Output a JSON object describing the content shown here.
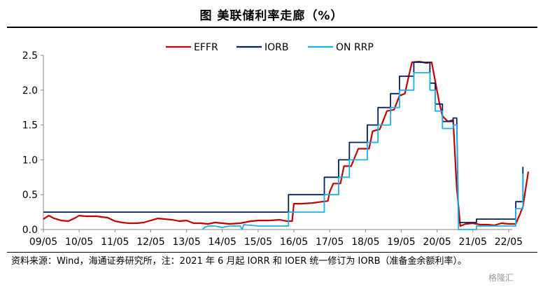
{
  "title": "图  美联储利率走廊（%）",
  "source": "资料来源：Wind，海通证券研究所，注：2021 年 6 月起 IORR 和 IOER 统一修订为 IORB（准备金余额利率）。",
  "watermark": "格隆汇",
  "chart_data": {
    "type": "line",
    "title": "",
    "xlabel": "",
    "ylabel": "",
    "ylim": [
      0,
      2.5
    ],
    "yticks": [
      "0.0",
      "0.5",
      "1.0",
      "1.5",
      "2.0",
      "2.5"
    ],
    "xticks": [
      "09/05",
      "10/05",
      "11/05",
      "12/05",
      "13/05",
      "14/05",
      "15/05",
      "16/05",
      "17/05",
      "18/05",
      "19/05",
      "20/05",
      "21/05",
      "22/05"
    ],
    "legend_position": "top-right",
    "series": [
      {
        "name": "EFFR",
        "color": "#c00000",
        "points": [
          [
            0,
            0.15
          ],
          [
            0.15,
            0.2
          ],
          [
            0.3,
            0.16
          ],
          [
            0.5,
            0.13
          ],
          [
            0.7,
            0.12
          ],
          [
            0.9,
            0.17
          ],
          [
            1.0,
            0.2
          ],
          [
            1.2,
            0.19
          ],
          [
            1.5,
            0.19
          ],
          [
            1.8,
            0.17
          ],
          [
            2.0,
            0.12
          ],
          [
            2.2,
            0.1
          ],
          [
            2.4,
            0.09
          ],
          [
            2.6,
            0.09
          ],
          [
            2.8,
            0.1
          ],
          [
            3.0,
            0.13
          ],
          [
            3.2,
            0.16
          ],
          [
            3.4,
            0.15
          ],
          [
            3.6,
            0.14
          ],
          [
            3.8,
            0.12
          ],
          [
            4.0,
            0.13
          ],
          [
            4.2,
            0.09
          ],
          [
            4.4,
            0.09
          ],
          [
            4.6,
            0.08
          ],
          [
            4.8,
            0.1
          ],
          [
            5.0,
            0.09
          ],
          [
            5.2,
            0.08
          ],
          [
            5.5,
            0.09
          ],
          [
            5.8,
            0.12
          ],
          [
            6.0,
            0.13
          ],
          [
            6.3,
            0.13
          ],
          [
            6.6,
            0.14
          ],
          [
            6.8,
            0.12
          ],
          [
            6.95,
            0.12
          ],
          [
            7.0,
            0.37
          ],
          [
            7.2,
            0.37
          ],
          [
            7.5,
            0.38
          ],
          [
            7.8,
            0.4
          ],
          [
            7.95,
            0.41
          ],
          [
            8.0,
            0.54
          ],
          [
            8.1,
            0.66
          ],
          [
            8.3,
            0.66
          ],
          [
            8.4,
            0.91
          ],
          [
            8.6,
            0.91
          ],
          [
            8.8,
            1.16
          ],
          [
            9.1,
            1.16
          ],
          [
            9.2,
            1.41
          ],
          [
            9.4,
            1.44
          ],
          [
            9.6,
            1.7
          ],
          [
            9.8,
            1.72
          ],
          [
            9.95,
            1.92
          ],
          [
            10.1,
            1.95
          ],
          [
            10.2,
            2.18
          ],
          [
            10.3,
            2.4
          ],
          [
            10.5,
            2.41
          ],
          [
            10.7,
            2.39
          ],
          [
            10.85,
            2.4
          ],
          [
            10.95,
            2.13
          ],
          [
            11.05,
            1.85
          ],
          [
            11.15,
            1.63
          ],
          [
            11.3,
            1.55
          ],
          [
            11.45,
            1.57
          ],
          [
            11.55,
            0.6
          ],
          [
            11.65,
            0.05
          ],
          [
            11.8,
            0.08
          ],
          [
            12.0,
            0.09
          ],
          [
            12.2,
            0.07
          ],
          [
            12.4,
            0.07
          ],
          [
            12.6,
            0.06
          ],
          [
            12.8,
            0.09
          ],
          [
            13.0,
            0.08
          ],
          [
            13.2,
            0.08
          ],
          [
            13.3,
            0.2
          ],
          [
            13.4,
            0.33
          ],
          [
            13.55,
            0.83
          ]
        ]
      },
      {
        "name": "IORB",
        "color": "#00205f",
        "points": [
          [
            0,
            0.25
          ],
          [
            6.85,
            0.25
          ],
          [
            6.85,
            0.5
          ],
          [
            7.85,
            0.5
          ],
          [
            7.85,
            0.75
          ],
          [
            8.25,
            0.75
          ],
          [
            8.25,
            1.0
          ],
          [
            8.55,
            1.0
          ],
          [
            8.55,
            1.25
          ],
          [
            9.05,
            1.25
          ],
          [
            9.05,
            1.5
          ],
          [
            9.35,
            1.5
          ],
          [
            9.35,
            1.75
          ],
          [
            9.7,
            1.75
          ],
          [
            9.7,
            1.95
          ],
          [
            9.95,
            1.95
          ],
          [
            9.95,
            2.2
          ],
          [
            10.35,
            2.2
          ],
          [
            10.35,
            2.4
          ],
          [
            10.8,
            2.4
          ],
          [
            10.8,
            2.1
          ],
          [
            10.95,
            2.1
          ],
          [
            10.95,
            1.8
          ],
          [
            11.15,
            1.8
          ],
          [
            11.15,
            1.55
          ],
          [
            11.45,
            1.55
          ],
          [
            11.45,
            1.6
          ],
          [
            11.55,
            1.6
          ],
          [
            11.6,
            0.1
          ],
          [
            12.1,
            0.1
          ],
          [
            12.1,
            0.15
          ],
          [
            12.95,
            0.15
          ],
          [
            12.95,
            0.15
          ],
          [
            13.2,
            0.15
          ],
          [
            13.2,
            0.4
          ],
          [
            13.4,
            0.4
          ],
          [
            13.4,
            0.9
          ]
        ]
      },
      {
        "name": "ON RRP",
        "color": "#1ab0e8",
        "points": [
          [
            4.45,
            0.0
          ],
          [
            4.5,
            0.03
          ],
          [
            4.6,
            0.05
          ],
          [
            4.8,
            0.05
          ],
          [
            5.0,
            0.03
          ],
          [
            5.2,
            0.05
          ],
          [
            5.5,
            0.05
          ],
          [
            5.55,
            0.0
          ],
          [
            5.6,
            0.07
          ],
          [
            6.0,
            0.05
          ],
          [
            6.5,
            0.05
          ],
          [
            6.85,
            0.05
          ],
          [
            6.85,
            0.25
          ],
          [
            7.85,
            0.25
          ],
          [
            7.85,
            0.5
          ],
          [
            8.25,
            0.5
          ],
          [
            8.25,
            0.75
          ],
          [
            8.55,
            0.75
          ],
          [
            8.55,
            1.0
          ],
          [
            9.05,
            1.0
          ],
          [
            9.05,
            1.25
          ],
          [
            9.35,
            1.25
          ],
          [
            9.35,
            1.5
          ],
          [
            9.7,
            1.5
          ],
          [
            9.7,
            1.75
          ],
          [
            9.95,
            1.75
          ],
          [
            9.95,
            2.0
          ],
          [
            10.35,
            2.0
          ],
          [
            10.35,
            2.25
          ],
          [
            10.8,
            2.25
          ],
          [
            10.8,
            2.0
          ],
          [
            10.95,
            2.0
          ],
          [
            10.95,
            1.7
          ],
          [
            11.15,
            1.7
          ],
          [
            11.15,
            1.45
          ],
          [
            11.45,
            1.45
          ],
          [
            11.45,
            1.5
          ],
          [
            11.55,
            1.5
          ],
          [
            11.6,
            0.0
          ],
          [
            11.7,
            0.0
          ],
          [
            12.1,
            0.0
          ],
          [
            12.1,
            0.05
          ],
          [
            13.2,
            0.05
          ],
          [
            13.2,
            0.3
          ],
          [
            13.4,
            0.3
          ],
          [
            13.4,
            0.8
          ]
        ]
      }
    ]
  }
}
